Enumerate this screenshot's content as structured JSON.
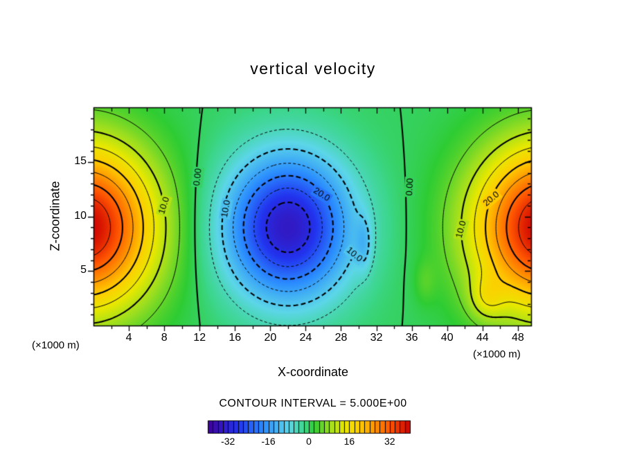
{
  "figure": {
    "title": "vertical velocity",
    "x_axis_label": "X-coordinate",
    "y_axis_label": "Z-coordinate",
    "x_units_left": "(×1000 m)",
    "x_units_right": "(×1000 m)",
    "contour_interval_text": "CONTOUR INTERVAL = 5.000E+00"
  },
  "chart_data": {
    "type": "filled_contour",
    "title": "vertical velocity",
    "xlabel": "X-coordinate",
    "ylabel": "Z-coordinate",
    "axis_units": "×1000 m",
    "x_range": [
      0,
      49.5
    ],
    "z_range": [
      0,
      20
    ],
    "x_ticks": [
      4,
      8,
      12,
      16,
      20,
      24,
      28,
      32,
      36,
      40,
      44,
      48
    ],
    "z_ticks": [
      5,
      10,
      15
    ],
    "grid": false,
    "contour_interval": 5.0,
    "contour_levels": [
      -30,
      -25,
      -20,
      -15,
      -10,
      -5,
      0,
      5,
      10,
      15,
      20,
      25,
      30,
      35
    ],
    "negative_contour_style": "dashed",
    "value_range": [
      -40,
      40
    ],
    "colorbar": {
      "position": "bottom",
      "cells": 40,
      "ticks": [
        -32,
        -16,
        0,
        16,
        32
      ]
    },
    "colormap_stops": [
      [
        -40,
        "#40009a"
      ],
      [
        -28,
        "#2233ee"
      ],
      [
        -18,
        "#2a8cff"
      ],
      [
        -8,
        "#5cd6e8"
      ],
      [
        -2,
        "#3cd68c"
      ],
      [
        2,
        "#2ecc33"
      ],
      [
        8,
        "#9ade20"
      ],
      [
        14,
        "#e8e800"
      ],
      [
        20,
        "#ffcc00"
      ],
      [
        26,
        "#ff9100"
      ],
      [
        32,
        "#ff5500"
      ],
      [
        40,
        "#cc0000"
      ]
    ],
    "field_model": {
      "note": "vertical velocity field approximated as a sum of gaussian blobs (m/s)",
      "base": 0,
      "blobs": [
        {
          "amp": 40,
          "x": -1,
          "z": 9,
          "sx": 8,
          "sz": 7.5
        },
        {
          "amp": -34,
          "x": 22,
          "z": 9,
          "sx": 7,
          "sz": 6.5
        },
        {
          "amp": 40,
          "x": 51,
          "z": 9,
          "sx": 8,
          "sz": 7.5
        },
        {
          "amp": -6,
          "x": 30.6,
          "z": 7.5,
          "sx": 0.9,
          "sz": 2.5
        },
        {
          "amp": 7,
          "x": 44.5,
          "z": 2.5,
          "sx": 2,
          "sz": 2
        },
        {
          "amp": 3,
          "x": 37.5,
          "z": 4,
          "sx": 1.2,
          "sz": 2
        }
      ]
    },
    "extrema": {
      "updraft_max_left": {
        "value": 39,
        "x": 0,
        "z": 9
      },
      "downdraft_min_center": {
        "value": -34,
        "x": 22,
        "z": 9
      },
      "updraft_max_right": {
        "value": 39,
        "x": 49.5,
        "z": 9
      }
    },
    "zero_lines_x": [
      11.5,
      36
    ],
    "contour_labels": [
      {
        "text": "0.00",
        "x": 11.8,
        "z": 13.6,
        "angle": -83
      },
      {
        "text": "10.0",
        "x": 8.0,
        "z": 11.0,
        "angle": -72
      },
      {
        "text": "10.0",
        "x": 15.0,
        "z": 10.7,
        "angle": -80
      },
      {
        "text": "20.0",
        "x": 25.8,
        "z": 12.0,
        "angle": 32
      },
      {
        "text": "10.0",
        "x": 29.5,
        "z": 6.5,
        "angle": 40
      },
      {
        "text": "0.00",
        "x": 35.8,
        "z": 12.7,
        "angle": -87
      },
      {
        "text": "10.0",
        "x": 41.6,
        "z": 8.8,
        "angle": -75
      },
      {
        "text": "20.0",
        "x": 45.0,
        "z": 11.6,
        "angle": -40
      }
    ]
  }
}
